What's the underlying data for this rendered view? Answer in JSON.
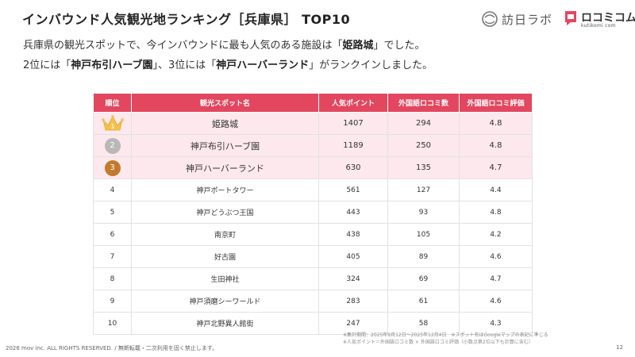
{
  "header": {
    "title": "インバウンド人気観光地ランキング［兵庫県］ TOP10",
    "logo_houjin": "訪日ラボ",
    "logo_kuchikomi": "ロコミコム",
    "logo_kuchikomi_sub": "kutikomi com",
    "brand_color": "#e2475f"
  },
  "description": {
    "line1_pre": "兵庫県の観光スポットで、今インバウンドに最も人気のある施設は「",
    "line1_bold": "姫路城",
    "line1_post": "」でした。",
    "line2_a": "2位には「",
    "line2_b": "神戸布引ハーブ園",
    "line2_c": "」、3位には「",
    "line2_d": "神戸ハーバーランド",
    "line2_e": "」がランクインしました。"
  },
  "table": {
    "headers": [
      "順位",
      "観光スポット名",
      "人気ポイント",
      "外国語ロコミ数",
      "外国語ロコミ評価"
    ],
    "rows": [
      {
        "rank": "1",
        "name": "姫路城",
        "points": "1407",
        "reviews": "294",
        "rating": "4.8"
      },
      {
        "rank": "2",
        "name": "神戸布引ハーブ園",
        "points": "1189",
        "reviews": "250",
        "rating": "4.8"
      },
      {
        "rank": "3",
        "name": "神戸ハーバーランド",
        "points": "630",
        "reviews": "135",
        "rating": "4.7"
      },
      {
        "rank": "4",
        "name": "神戸ポートタワー",
        "points": "561",
        "reviews": "127",
        "rating": "4.4"
      },
      {
        "rank": "5",
        "name": "神戸どうぶつ王国",
        "points": "443",
        "reviews": "93",
        "rating": "4.8"
      },
      {
        "rank": "6",
        "name": "南京町",
        "points": "438",
        "reviews": "105",
        "rating": "4.2"
      },
      {
        "rank": "7",
        "name": "好古園",
        "points": "405",
        "reviews": "89",
        "rating": "4.6"
      },
      {
        "rank": "8",
        "name": "生田神社",
        "points": "324",
        "reviews": "69",
        "rating": "4.7"
      },
      {
        "rank": "9",
        "name": "神戸須磨シーワールド",
        "points": "283",
        "reviews": "61",
        "rating": "4.6"
      },
      {
        "rank": "10",
        "name": "神戸北野異人館街",
        "points": "247",
        "reviews": "58",
        "rating": "4.3"
      }
    ],
    "medal_colors": {
      "gold": "#f2c14e",
      "silver": "#b8b8b8",
      "bronze": "#c27a2c"
    }
  },
  "notes": {
    "line1": "※集計期間：2025年9月12日〜2025年12月4日　※スポット名はGoogleマップの表記に準じる",
    "line2": "※人気ポイント＝外国語ロコミ数 × 外国語ロコミ評価（小数点第2位以下も計算に含む）"
  },
  "footer": {
    "copyright": "2026 mov inc. ALL RIGHTS RESERVED. / 無断転載・二次利用を固く禁止します。",
    "page_number": "12"
  }
}
